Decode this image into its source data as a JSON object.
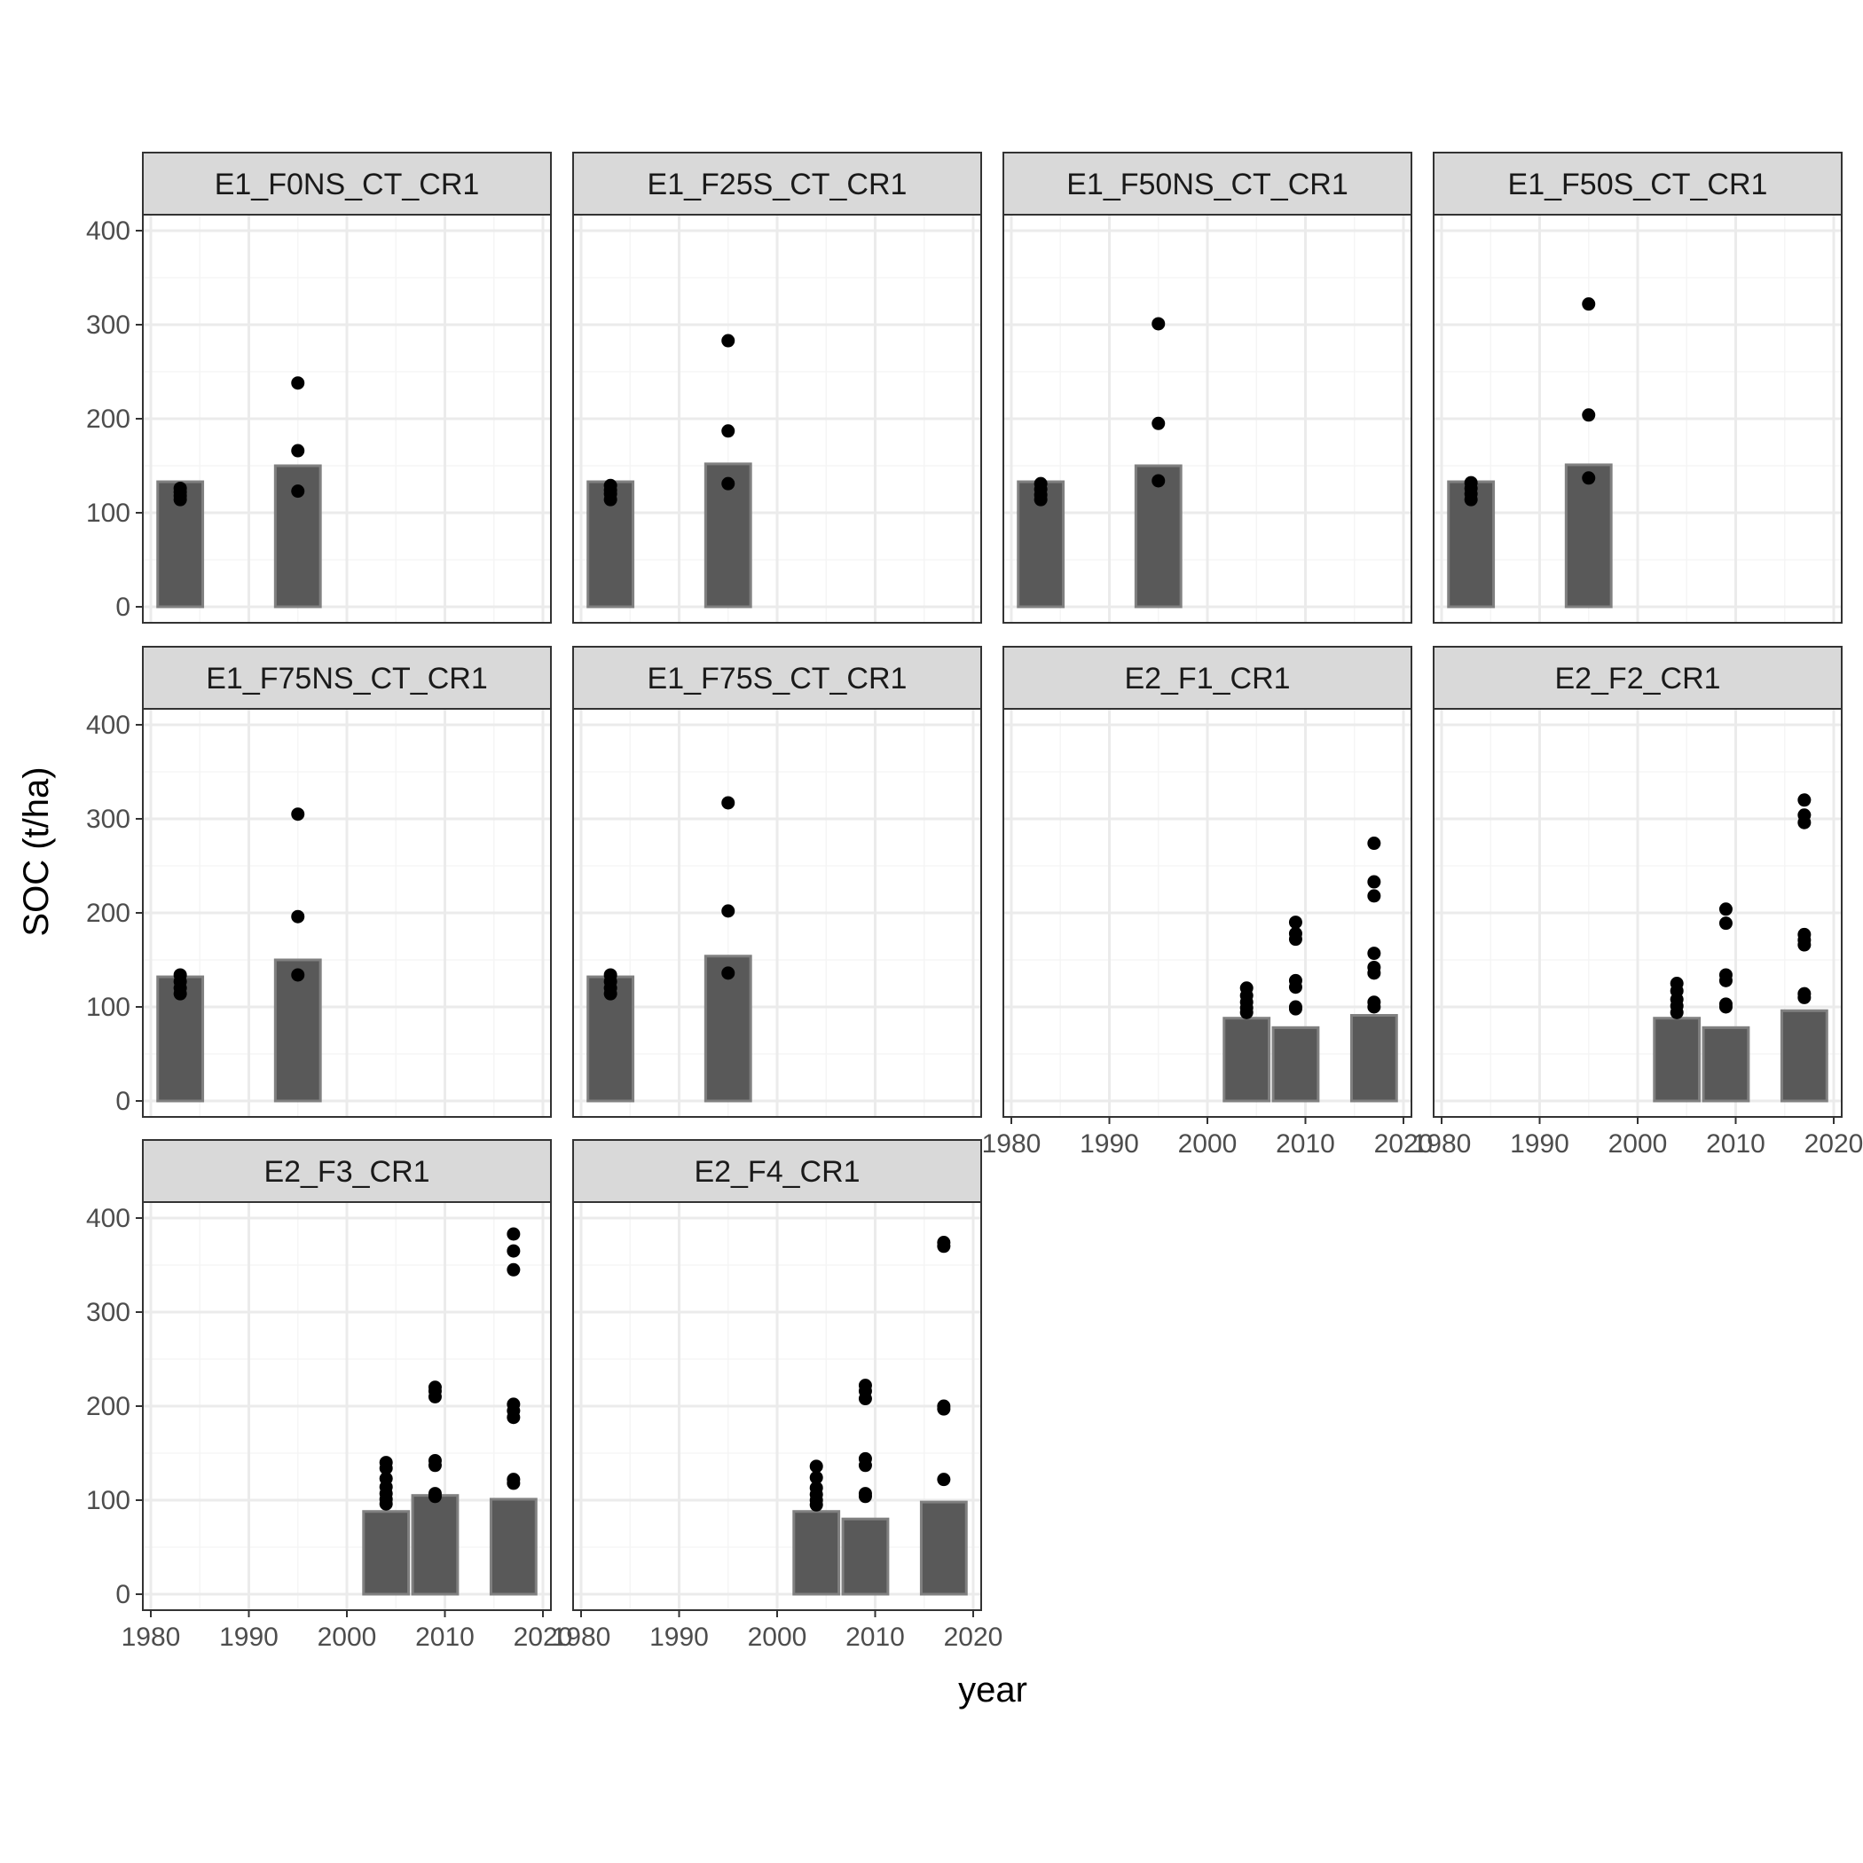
{
  "chart_data": {
    "type": "bar",
    "description_overlay": "bars with overlaid points",
    "xlabel": "year",
    "ylabel": "SOC (t/ha)",
    "xlim": [
      1980,
      2020
    ],
    "ylim": [
      0,
      400
    ],
    "x_ticks": [
      1980,
      1990,
      2000,
      2010,
      2020
    ],
    "y_ticks": [
      0,
      100,
      200,
      300,
      400
    ],
    "grid": true,
    "colors": {
      "bar_fill": "#595959",
      "bar_outline": "#808080",
      "point": "#000000",
      "strip_bg": "#d9d9d9",
      "strip_border": "#333333",
      "panel_border": "#333333",
      "grid_major": "#ebebeb",
      "grid_minor": "#f5f5f5"
    },
    "panels": [
      {
        "label": "E1_F0NS_CT_CR1",
        "bars": [
          {
            "x": 1983,
            "y": 133
          },
          {
            "x": 1995,
            "y": 150
          }
        ],
        "points": [
          {
            "x": 1983,
            "y": 114
          },
          {
            "x": 1983,
            "y": 118
          },
          {
            "x": 1983,
            "y": 122
          },
          {
            "x": 1983,
            "y": 126
          },
          {
            "x": 1995,
            "y": 123
          },
          {
            "x": 1995,
            "y": 166
          },
          {
            "x": 1995,
            "y": 238
          }
        ]
      },
      {
        "label": "E1_F25S_CT_CR1",
        "bars": [
          {
            "x": 1983,
            "y": 133
          },
          {
            "x": 1995,
            "y": 152
          }
        ],
        "points": [
          {
            "x": 1983,
            "y": 114
          },
          {
            "x": 1983,
            "y": 120
          },
          {
            "x": 1983,
            "y": 124
          },
          {
            "x": 1983,
            "y": 129
          },
          {
            "x": 1995,
            "y": 131
          },
          {
            "x": 1995,
            "y": 187
          },
          {
            "x": 1995,
            "y": 283
          }
        ]
      },
      {
        "label": "E1_F50NS_CT_CR1",
        "bars": [
          {
            "x": 1983,
            "y": 133
          },
          {
            "x": 1995,
            "y": 150
          }
        ],
        "points": [
          {
            "x": 1983,
            "y": 114
          },
          {
            "x": 1983,
            "y": 119
          },
          {
            "x": 1983,
            "y": 125
          },
          {
            "x": 1983,
            "y": 131
          },
          {
            "x": 1995,
            "y": 134
          },
          {
            "x": 1995,
            "y": 195
          },
          {
            "x": 1995,
            "y": 301
          }
        ]
      },
      {
        "label": "E1_F50S_CT_CR1",
        "bars": [
          {
            "x": 1983,
            "y": 133
          },
          {
            "x": 1995,
            "y": 151
          }
        ],
        "points": [
          {
            "x": 1983,
            "y": 114
          },
          {
            "x": 1983,
            "y": 120
          },
          {
            "x": 1983,
            "y": 126
          },
          {
            "x": 1983,
            "y": 132
          },
          {
            "x": 1995,
            "y": 137
          },
          {
            "x": 1995,
            "y": 204
          },
          {
            "x": 1995,
            "y": 322
          }
        ]
      },
      {
        "label": "E1_F75NS_CT_CR1",
        "bars": [
          {
            "x": 1983,
            "y": 132
          },
          {
            "x": 1995,
            "y": 150
          }
        ],
        "points": [
          {
            "x": 1983,
            "y": 114
          },
          {
            "x": 1983,
            "y": 120
          },
          {
            "x": 1983,
            "y": 127
          },
          {
            "x": 1983,
            "y": 134
          },
          {
            "x": 1995,
            "y": 134
          },
          {
            "x": 1995,
            "y": 196
          },
          {
            "x": 1995,
            "y": 305
          }
        ]
      },
      {
        "label": "E1_F75S_CT_CR1",
        "bars": [
          {
            "x": 1983,
            "y": 132
          },
          {
            "x": 1995,
            "y": 154
          }
        ],
        "points": [
          {
            "x": 1983,
            "y": 114
          },
          {
            "x": 1983,
            "y": 120
          },
          {
            "x": 1983,
            "y": 127
          },
          {
            "x": 1983,
            "y": 134
          },
          {
            "x": 1995,
            "y": 136
          },
          {
            "x": 1995,
            "y": 202
          },
          {
            "x": 1995,
            "y": 317
          }
        ]
      },
      {
        "label": "E2_F1_CR1",
        "bars": [
          {
            "x": 2004,
            "y": 88
          },
          {
            "x": 2009,
            "y": 78
          },
          {
            "x": 2017,
            "y": 91
          }
        ],
        "points": [
          {
            "x": 2004,
            "y": 94
          },
          {
            "x": 2004,
            "y": 99
          },
          {
            "x": 2004,
            "y": 105
          },
          {
            "x": 2004,
            "y": 112
          },
          {
            "x": 2004,
            "y": 120
          },
          {
            "x": 2009,
            "y": 98
          },
          {
            "x": 2009,
            "y": 100
          },
          {
            "x": 2009,
            "y": 121
          },
          {
            "x": 2009,
            "y": 128
          },
          {
            "x": 2009,
            "y": 172
          },
          {
            "x": 2009,
            "y": 178
          },
          {
            "x": 2009,
            "y": 190
          },
          {
            "x": 2017,
            "y": 100
          },
          {
            "x": 2017,
            "y": 105
          },
          {
            "x": 2017,
            "y": 136
          },
          {
            "x": 2017,
            "y": 142
          },
          {
            "x": 2017,
            "y": 157
          },
          {
            "x": 2017,
            "y": 218
          },
          {
            "x": 2017,
            "y": 233
          },
          {
            "x": 2017,
            "y": 274
          }
        ]
      },
      {
        "label": "E2_F2_CR1",
        "bars": [
          {
            "x": 2004,
            "y": 88
          },
          {
            "x": 2009,
            "y": 78
          },
          {
            "x": 2017,
            "y": 96
          }
        ],
        "points": [
          {
            "x": 2004,
            "y": 94
          },
          {
            "x": 2004,
            "y": 101
          },
          {
            "x": 2004,
            "y": 108
          },
          {
            "x": 2004,
            "y": 117
          },
          {
            "x": 2004,
            "y": 125
          },
          {
            "x": 2009,
            "y": 100
          },
          {
            "x": 2009,
            "y": 103
          },
          {
            "x": 2009,
            "y": 128
          },
          {
            "x": 2009,
            "y": 134
          },
          {
            "x": 2009,
            "y": 189
          },
          {
            "x": 2009,
            "y": 204
          },
          {
            "x": 2017,
            "y": 110
          },
          {
            "x": 2017,
            "y": 114
          },
          {
            "x": 2017,
            "y": 166
          },
          {
            "x": 2017,
            "y": 171
          },
          {
            "x": 2017,
            "y": 177
          },
          {
            "x": 2017,
            "y": 296
          },
          {
            "x": 2017,
            "y": 304
          },
          {
            "x": 2017,
            "y": 320
          }
        ]
      },
      {
        "label": "E2_F3_CR1",
        "bars": [
          {
            "x": 2004,
            "y": 88
          },
          {
            "x": 2009,
            "y": 105
          },
          {
            "x": 2017,
            "y": 101
          }
        ],
        "points": [
          {
            "x": 2004,
            "y": 96
          },
          {
            "x": 2004,
            "y": 101
          },
          {
            "x": 2004,
            "y": 107
          },
          {
            "x": 2004,
            "y": 114
          },
          {
            "x": 2004,
            "y": 123
          },
          {
            "x": 2004,
            "y": 134
          },
          {
            "x": 2004,
            "y": 140
          },
          {
            "x": 2009,
            "y": 104
          },
          {
            "x": 2009,
            "y": 107
          },
          {
            "x": 2009,
            "y": 137
          },
          {
            "x": 2009,
            "y": 142
          },
          {
            "x": 2009,
            "y": 210
          },
          {
            "x": 2009,
            "y": 216
          },
          {
            "x": 2009,
            "y": 220
          },
          {
            "x": 2017,
            "y": 118
          },
          {
            "x": 2017,
            "y": 122
          },
          {
            "x": 2017,
            "y": 188
          },
          {
            "x": 2017,
            "y": 195
          },
          {
            "x": 2017,
            "y": 202
          },
          {
            "x": 2017,
            "y": 345
          },
          {
            "x": 2017,
            "y": 365
          },
          {
            "x": 2017,
            "y": 383
          }
        ]
      },
      {
        "label": "E2_F4_CR1",
        "bars": [
          {
            "x": 2004,
            "y": 88
          },
          {
            "x": 2009,
            "y": 80
          },
          {
            "x": 2017,
            "y": 98
          }
        ],
        "points": [
          {
            "x": 2004,
            "y": 95
          },
          {
            "x": 2004,
            "y": 100
          },
          {
            "x": 2004,
            "y": 106
          },
          {
            "x": 2004,
            "y": 113
          },
          {
            "x": 2004,
            "y": 124
          },
          {
            "x": 2004,
            "y": 136
          },
          {
            "x": 2009,
            "y": 104
          },
          {
            "x": 2009,
            "y": 107
          },
          {
            "x": 2009,
            "y": 137
          },
          {
            "x": 2009,
            "y": 144
          },
          {
            "x": 2009,
            "y": 208
          },
          {
            "x": 2009,
            "y": 216
          },
          {
            "x": 2009,
            "y": 222
          },
          {
            "x": 2017,
            "y": 122
          },
          {
            "x": 2017,
            "y": 197
          },
          {
            "x": 2017,
            "y": 200
          },
          {
            "x": 2017,
            "y": 370
          },
          {
            "x": 2017,
            "y": 374
          }
        ]
      }
    ]
  }
}
